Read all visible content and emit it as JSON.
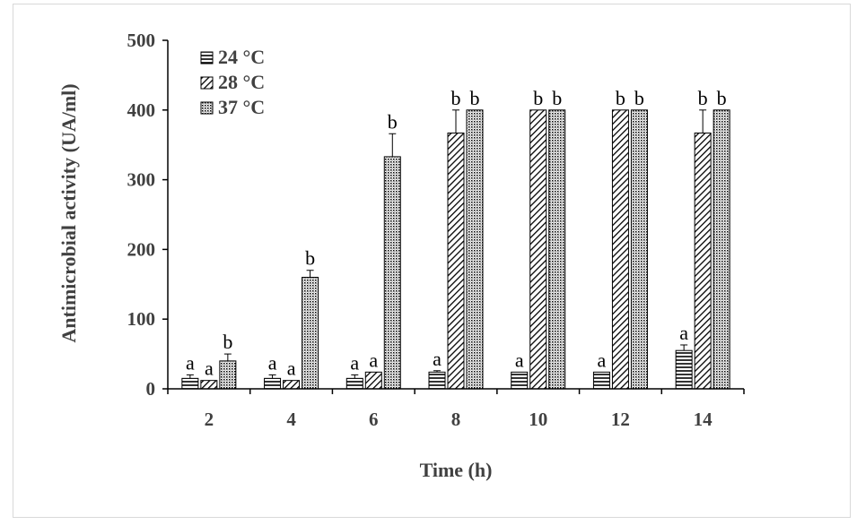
{
  "chart_data": {
    "type": "bar",
    "title": "",
    "xlabel": "Time (h)",
    "ylabel": "Antimicrobial activity (UA/ml)",
    "categories": [
      "2",
      "4",
      "6",
      "8",
      "10",
      "12",
      "14"
    ],
    "ylim": [
      0,
      500
    ],
    "yticks": [
      0,
      100,
      200,
      300,
      400,
      500
    ],
    "grid": false,
    "legend_position": "top-left",
    "series": [
      {
        "name": "24 °C",
        "pattern": "horizontal-lines",
        "values": [
          15,
          15,
          15,
          24,
          24,
          24,
          55
        ],
        "errors": [
          5,
          5,
          5,
          2,
          0,
          0,
          8
        ],
        "labels": [
          "a",
          "a",
          "a",
          "a",
          "a",
          "a",
          "a"
        ]
      },
      {
        "name": "28 °C",
        "pattern": "diagonal-lines",
        "values": [
          12,
          12,
          24,
          367,
          400,
          400,
          367
        ],
        "errors": [
          0,
          0,
          0,
          33,
          0,
          0,
          33
        ],
        "labels": [
          "a",
          "a",
          "a",
          "b",
          "b",
          "b",
          "b"
        ]
      },
      {
        "name": "37 °C",
        "pattern": "dots",
        "values": [
          40,
          160,
          333,
          400,
          400,
          400,
          400
        ],
        "errors": [
          10,
          10,
          33,
          0,
          0,
          0,
          0
        ],
        "labels": [
          "b",
          "b",
          "b",
          "b",
          "b",
          "b",
          "b"
        ]
      }
    ],
    "colors": {
      "axis": "#000000",
      "text": "#404040",
      "bar_edge": "#000000"
    }
  }
}
